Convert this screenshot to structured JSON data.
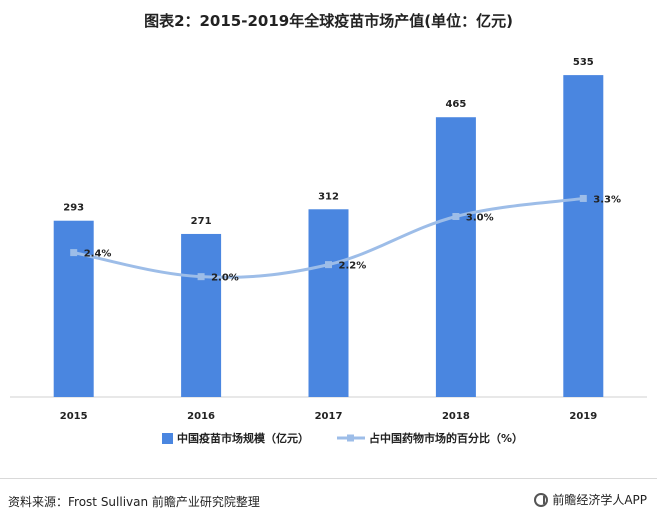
{
  "chart_data": {
    "type": "bar",
    "title": "图表2：2015-2019年全球疫苗市场产值(单位：亿元)",
    "categories": [
      "2015",
      "2016",
      "2017",
      "2018",
      "2019"
    ],
    "series": [
      {
        "name": "中国疫苗市场规模（亿元）",
        "type": "bar",
        "values": [
          293,
          271,
          312,
          465,
          535
        ],
        "labels": [
          "293",
          "271",
          "312",
          "465",
          "535"
        ],
        "color": "#4a86e0"
      },
      {
        "name": "占中国药物市场的百分比（%）",
        "type": "line",
        "values": [
          2.4,
          2.0,
          2.2,
          3.0,
          3.3
        ],
        "labels": [
          "2.4%",
          "2.0%",
          "2.2%",
          "3.0%",
          "3.3%"
        ],
        "color": "#9dbde8",
        "axis": "secondary"
      }
    ],
    "ylim": [
      0,
      600
    ],
    "y2lim": [
      0,
      6
    ],
    "legend_position": "bottom",
    "grid": false
  },
  "footer": {
    "source": "资料来源：Frost Sullivan 前瞻产业研究院整理",
    "brand": "前瞻经济学人APP"
  }
}
